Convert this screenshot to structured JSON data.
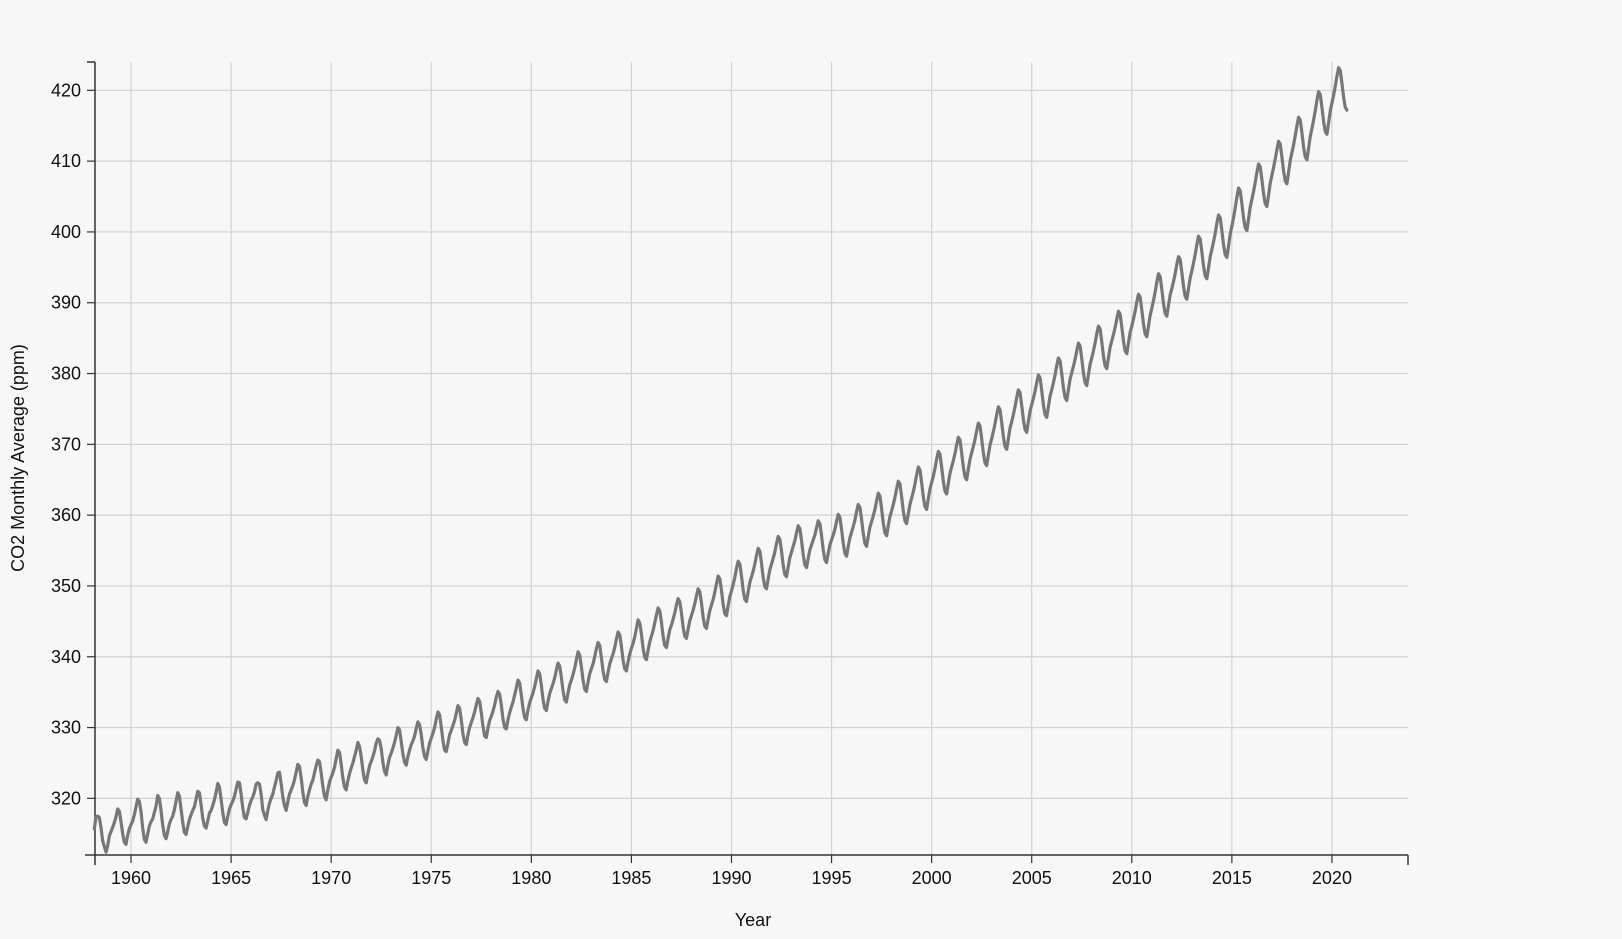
{
  "chart_data": {
    "type": "line",
    "title": "",
    "xlabel": "Year",
    "ylabel": "CO2 Monthly Average (ppm)",
    "xlim": [
      1958.2,
      2023.8
    ],
    "ylim": [
      312.0,
      424.0
    ],
    "x_ticks": [
      "1960",
      "1965",
      "1970",
      "1975",
      "1980",
      "1985",
      "1990",
      "1995",
      "2000",
      "2005",
      "2010",
      "2015",
      "2020"
    ],
    "y_ticks": [
      "320",
      "330",
      "340",
      "350",
      "360",
      "370",
      "380",
      "390",
      "400",
      "410",
      "420"
    ],
    "grid": true,
    "legend": "none",
    "series": [
      {
        "color": "#777777",
        "x_start": "1958-03",
        "x_interval": "monthly",
        "values": [
          315.7,
          317.4,
          317.5,
          317.3,
          315.9,
          314.0,
          313.2,
          312.4,
          313.3,
          314.7,
          315.3,
          315.9,
          316.6,
          317.4,
          318.5,
          318.2,
          316.7,
          315.0,
          313.8,
          313.5,
          314.8,
          315.7,
          316.3,
          316.8,
          317.7,
          318.8,
          319.9,
          319.6,
          318.1,
          315.8,
          314.2,
          313.8,
          315.0,
          316.1,
          316.7,
          317.1,
          318.0,
          318.9,
          320.4,
          320.0,
          318.3,
          316.2,
          314.8,
          314.3,
          315.3,
          316.4,
          317.0,
          317.5,
          318.4,
          319.6,
          320.8,
          320.3,
          318.5,
          316.6,
          315.2,
          314.9,
          316.0,
          317.0,
          317.7,
          318.3,
          318.8,
          319.9,
          321.0,
          320.8,
          319.1,
          317.2,
          316.1,
          315.8,
          316.8,
          317.9,
          318.3,
          319.0,
          319.8,
          320.8,
          322.1,
          321.6,
          319.9,
          318.0,
          316.6,
          316.3,
          317.5,
          318.5,
          319.1,
          319.6,
          320.3,
          321.3,
          322.3,
          322.2,
          320.6,
          318.6,
          317.3,
          317.1,
          318.0,
          319.0,
          319.7,
          320.2,
          320.9,
          322.0,
          322.2,
          322.0,
          320.6,
          318.4,
          317.6,
          317.0,
          318.3,
          319.3,
          320.0,
          320.6,
          321.6,
          322.5,
          323.6,
          323.7,
          322.1,
          320.2,
          319.0,
          318.3,
          319.5,
          320.6,
          321.2,
          321.8,
          322.6,
          323.7,
          324.8,
          324.5,
          322.9,
          320.9,
          319.4,
          319.0,
          320.3,
          321.2,
          322.0,
          322.6,
          323.6,
          324.6,
          325.4,
          325.2,
          323.6,
          321.7,
          320.3,
          319.8,
          321.2,
          322.3,
          323.0,
          323.6,
          324.4,
          325.6,
          326.8,
          326.5,
          324.8,
          322.9,
          321.6,
          321.2,
          322.5,
          323.5,
          324.3,
          325.0,
          325.9,
          326.8,
          327.9,
          327.3,
          325.9,
          324.0,
          322.6,
          322.2,
          323.5,
          324.6,
          325.2,
          325.9,
          326.7,
          327.8,
          328.4,
          328.2,
          327.0,
          325.1,
          323.8,
          323.3,
          324.7,
          325.8,
          326.4,
          327.1,
          327.9,
          328.9,
          330.0,
          329.7,
          328.0,
          326.3,
          325.1,
          324.7,
          325.9,
          326.8,
          327.6,
          328.1,
          328.8,
          329.9,
          330.8,
          330.4,
          329.0,
          327.1,
          325.9,
          325.5,
          326.7,
          327.8,
          328.5,
          329.2,
          330.0,
          331.2,
          332.2,
          331.8,
          330.1,
          328.2,
          326.8,
          326.6,
          327.8,
          329.0,
          329.6,
          330.3,
          331.0,
          332.0,
          333.1,
          332.7,
          331.1,
          329.1,
          327.9,
          327.6,
          329.0,
          330.0,
          330.7,
          331.4,
          332.2,
          333.2,
          334.1,
          333.7,
          332.1,
          330.2,
          328.8,
          328.6,
          329.9,
          331.0,
          331.6,
          332.3,
          333.2,
          334.3,
          335.1,
          334.7,
          333.2,
          331.2,
          330.0,
          329.8,
          331.1,
          332.1,
          332.9,
          333.6,
          334.6,
          335.6,
          336.7,
          336.3,
          334.6,
          332.7,
          331.4,
          331.1,
          332.5,
          333.5,
          334.2,
          334.9,
          335.8,
          336.9,
          338.0,
          337.6,
          336.0,
          334.0,
          332.7,
          332.4,
          333.7,
          334.8,
          335.5,
          336.2,
          337.0,
          338.1,
          339.1,
          338.7,
          337.1,
          335.2,
          333.9,
          333.6,
          334.9,
          336.0,
          336.7,
          337.5,
          338.4,
          339.6,
          340.7,
          340.2,
          338.6,
          336.7,
          335.4,
          335.1,
          336.4,
          337.6,
          338.3,
          339.0,
          340.0,
          341.1,
          342.0,
          341.6,
          339.9,
          338.0,
          336.8,
          336.5,
          337.8,
          339.0,
          339.7,
          340.4,
          341.3,
          342.5,
          343.5,
          343.1,
          341.5,
          339.5,
          338.3,
          338.0,
          339.3,
          340.4,
          341.2,
          341.9,
          342.8,
          344.0,
          345.2,
          344.8,
          343.2,
          341.2,
          339.9,
          339.6,
          340.9,
          342.1,
          342.9,
          343.7,
          344.8,
          345.9,
          346.9,
          346.5,
          344.9,
          342.9,
          341.6,
          341.3,
          342.6,
          343.8,
          344.5,
          345.3,
          346.2,
          347.3,
          348.2,
          347.8,
          346.2,
          344.2,
          342.9,
          342.6,
          343.9,
          345.1,
          345.8,
          346.6,
          347.5,
          348.6,
          349.6,
          349.2,
          347.6,
          345.6,
          344.3,
          344.0,
          345.3,
          346.5,
          347.3,
          348.1,
          349.1,
          350.3,
          351.4,
          351.0,
          349.4,
          347.4,
          346.1,
          345.8,
          347.2,
          348.5,
          349.3,
          350.2,
          351.2,
          352.5,
          353.5,
          353.1,
          351.4,
          349.4,
          348.1,
          347.8,
          349.2,
          350.5,
          351.3,
          352.1,
          353.1,
          354.3,
          355.3,
          354.9,
          353.2,
          351.2,
          349.9,
          349.6,
          351.0,
          352.3,
          353.1,
          353.9,
          354.8,
          356.0,
          357.0,
          356.6,
          354.9,
          352.9,
          351.6,
          351.3,
          352.7,
          354.0,
          354.8,
          355.6,
          356.4,
          357.5,
          358.5,
          358.1,
          356.4,
          354.4,
          353.0,
          352.6,
          353.9,
          355.1,
          355.8,
          356.5,
          357.2,
          358.2,
          359.2,
          358.8,
          357.1,
          355.1,
          353.7,
          353.3,
          354.6,
          355.8,
          356.5,
          357.2,
          358.0,
          359.1,
          360.1,
          359.7,
          358.0,
          356.0,
          354.6,
          354.2,
          355.6,
          356.8,
          357.6,
          358.4,
          359.3,
          360.5,
          361.5,
          361.1,
          359.4,
          357.4,
          356.0,
          355.6,
          357.0,
          358.3,
          359.1,
          359.9,
          360.8,
          362.0,
          363.1,
          362.7,
          360.9,
          358.9,
          357.5,
          357.1,
          358.5,
          359.8,
          360.6,
          361.5,
          362.5,
          363.7,
          364.8,
          364.4,
          362.6,
          360.6,
          359.2,
          358.8,
          360.2,
          361.5,
          362.4,
          363.3,
          364.4,
          365.7,
          366.8,
          366.4,
          364.6,
          362.6,
          361.2,
          360.8,
          362.3,
          363.7,
          364.6,
          365.5,
          366.6,
          367.9,
          369.0,
          368.6,
          366.8,
          364.8,
          363.4,
          363.0,
          364.5,
          365.9,
          366.8,
          367.7,
          368.7,
          369.9,
          371.0,
          370.6,
          368.8,
          366.8,
          365.4,
          365.0,
          366.5,
          367.9,
          368.8,
          369.7,
          370.7,
          371.9,
          373.0,
          372.6,
          370.8,
          368.8,
          367.4,
          367.0,
          368.5,
          369.9,
          370.8,
          371.8,
          372.9,
          374.2,
          375.3,
          374.9,
          373.1,
          371.1,
          369.7,
          369.3,
          370.8,
          372.3,
          373.2,
          374.2,
          375.3,
          376.6,
          377.7,
          377.3,
          375.5,
          373.5,
          372.1,
          371.7,
          373.2,
          374.7,
          375.6,
          376.5,
          377.5,
          378.7,
          379.8,
          379.4,
          377.6,
          375.6,
          374.2,
          373.8,
          375.3,
          376.8,
          377.7,
          378.7,
          379.8,
          381.1,
          382.2,
          381.8,
          380.0,
          378.0,
          376.6,
          376.2,
          377.7,
          379.2,
          380.1,
          381.0,
          382.0,
          383.2,
          384.3,
          383.9,
          382.1,
          380.1,
          378.7,
          378.3,
          379.8,
          381.3,
          382.2,
          383.2,
          384.3,
          385.6,
          386.7,
          386.3,
          384.5,
          382.5,
          381.1,
          380.7,
          382.2,
          383.7,
          384.6,
          385.5,
          386.5,
          387.7,
          388.8,
          388.4,
          386.6,
          384.6,
          383.2,
          382.8,
          384.3,
          385.8,
          386.7,
          387.7,
          388.8,
          390.1,
          391.2,
          390.8,
          389.0,
          387.0,
          385.6,
          385.2,
          386.7,
          388.2,
          389.2,
          390.3,
          391.5,
          392.9,
          394.1,
          393.7,
          391.9,
          389.9,
          388.5,
          388.1,
          389.6,
          391.1,
          392.0,
          393.0,
          394.1,
          395.4,
          396.5,
          396.1,
          394.3,
          392.3,
          390.9,
          390.5,
          392.0,
          393.5,
          394.5,
          395.6,
          396.8,
          398.2,
          399.4,
          399.0,
          397.2,
          395.2,
          393.8,
          393.4,
          394.9,
          396.5,
          397.5,
          398.6,
          399.8,
          401.2,
          402.4,
          402.0,
          400.2,
          398.2,
          396.8,
          396.4,
          398.0,
          399.7,
          400.8,
          402.0,
          403.4,
          404.9,
          406.2,
          405.8,
          404.0,
          402.0,
          400.6,
          400.2,
          401.8,
          403.5,
          404.6,
          405.7,
          407.0,
          408.4,
          409.6,
          409.2,
          407.4,
          405.4,
          404.0,
          403.6,
          405.2,
          406.9,
          408.0,
          409.1,
          410.3,
          411.6,
          412.8,
          412.4,
          410.6,
          408.6,
          407.2,
          406.8,
          408.4,
          410.1,
          411.2,
          412.3,
          413.6,
          415.0,
          416.2,
          415.8,
          414.0,
          412.0,
          410.6,
          410.2,
          411.8,
          413.5,
          414.6,
          415.8,
          417.1,
          418.6,
          419.8,
          419.4,
          417.6,
          415.6,
          414.2,
          413.8,
          415.4,
          417.1,
          418.2,
          419.3,
          420.6,
          422.0,
          423.2,
          422.8,
          421.0,
          419.0,
          417.6,
          417.2
        ]
      }
    ]
  }
}
